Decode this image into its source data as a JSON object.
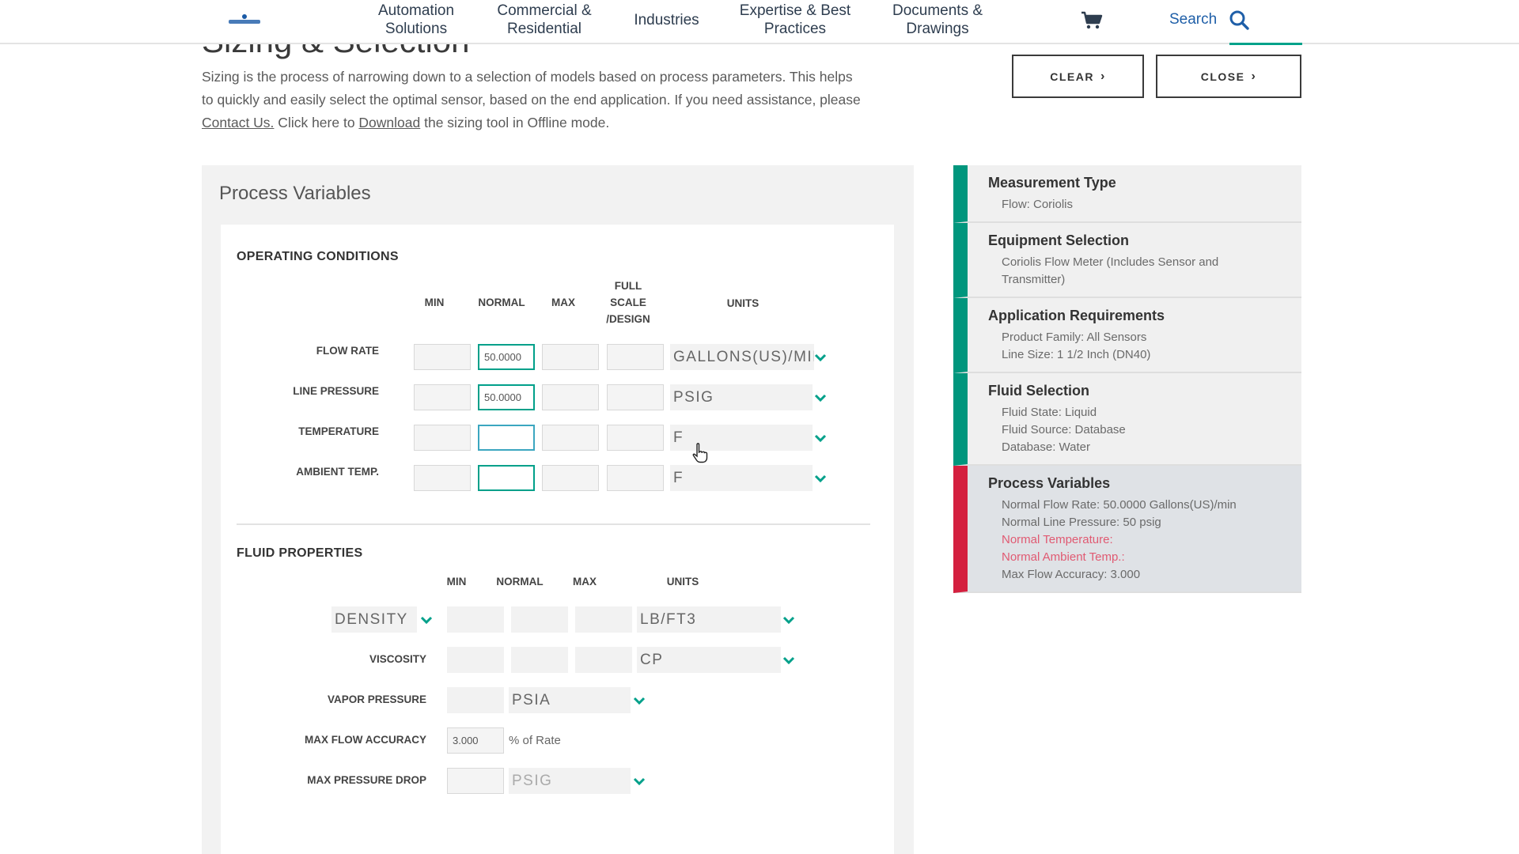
{
  "nav": {
    "items": [
      {
        "line1": "Automation",
        "line2": "Solutions"
      },
      {
        "line1": "Commercial &",
        "line2": "Residential"
      },
      {
        "line1": "Industries",
        "line2": ""
      },
      {
        "line1": "Expertise & Best",
        "line2": "Practices"
      },
      {
        "line1": "Documents &",
        "line2": "Drawings"
      }
    ],
    "search_label": "Search",
    "accent_color": "#00a28a"
  },
  "header": {
    "title": "Sizing & Selection",
    "intro_1": "Sizing is the process of narrowing down to a selection of models based on process parameters. This helps to quickly and easily select the optimal sensor, based on the end application. If you need assistance, please ",
    "contact_link": "Contact Us.",
    "intro_2": " Click here to ",
    "download_link": "Download",
    "intro_3": " the sizing tool in Offline mode.",
    "clear_button": "CLEAR",
    "close_button": "CLOSE"
  },
  "process": {
    "title": "Process Variables",
    "operating": {
      "title": "OPERATING CONDITIONS",
      "headers": {
        "min": "MIN",
        "normal": "NORMAL",
        "max": "MAX",
        "full1": "FULL",
        "full2": "SCALE",
        "full3": "/DESIGN",
        "units": "UNITS"
      },
      "rows": [
        {
          "label": "FLOW RATE",
          "min": "",
          "normal": "50.0000",
          "max": "",
          "full": "",
          "units": "GALLONS(US)/MIN"
        },
        {
          "label": "LINE PRESSURE",
          "min": "",
          "normal": "50.0000",
          "max": "",
          "full": "",
          "units": "PSIG"
        },
        {
          "label": "TEMPERATURE",
          "min": "",
          "normal": "",
          "max": "",
          "full": "",
          "units": "F"
        },
        {
          "label": "AMBIENT TEMP.",
          "min": "",
          "normal": "",
          "max": "",
          "full": "",
          "units": "F"
        }
      ]
    },
    "fluid": {
      "title": "FLUID PROPERTIES",
      "headers": {
        "min": "MIN",
        "normal": "NORMAL",
        "max": "MAX",
        "units": "UNITS"
      },
      "density": {
        "label": "DENSITY",
        "units": "LB/FT3"
      },
      "viscosity": {
        "label": "VISCOSITY",
        "units": "CP"
      },
      "vapor": {
        "label": "VAPOR PRESSURE",
        "units": "PSIA"
      },
      "accuracy": {
        "label": "MAX FLOW ACCURACY",
        "value": "3.000",
        "suffix": "% of Rate"
      },
      "pressure_drop": {
        "label": "MAX PRESSURE DROP",
        "units": "PSIG"
      }
    }
  },
  "summary": {
    "ok_color": "#00967d",
    "error_color": "#d4203f",
    "items": [
      {
        "title": "Measurement Type",
        "lines": [
          "Flow: Coriolis"
        ]
      },
      {
        "title": "Equipment Selection",
        "lines": [
          "Coriolis Flow Meter (Includes Sensor and",
          "Transmitter)"
        ]
      },
      {
        "title": "Application Requirements",
        "lines": [
          "Product Family: All Sensors",
          "Line Size: 1 1/2 Inch (DN40)"
        ]
      },
      {
        "title": "Fluid Selection",
        "lines": [
          "Fluid State: Liquid",
          "Fluid Source: Database",
          "Database: Water"
        ]
      },
      {
        "title": "Process Variables",
        "lines": [
          "Normal Flow Rate: 50.0000 Gallons(US)/min",
          "Normal Line Pressure: 50 psig",
          "Normal Temperature:",
          "Normal Ambient Temp.:",
          "Max Flow Accuracy: 3.000"
        ]
      }
    ]
  }
}
